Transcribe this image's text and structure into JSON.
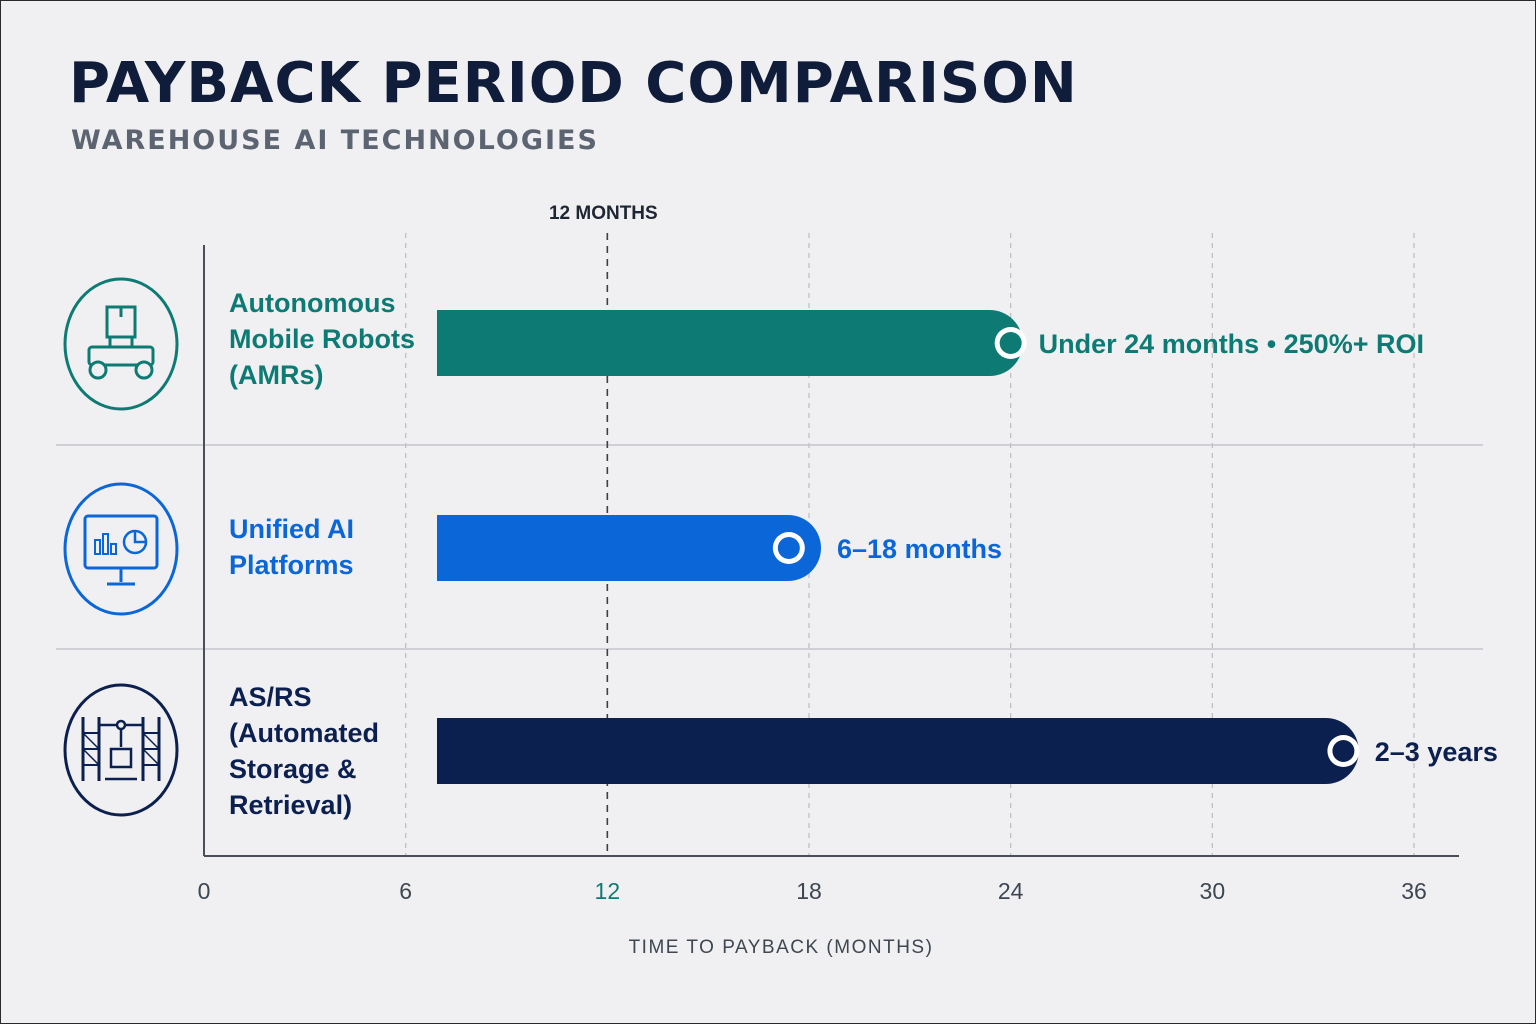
{
  "title": "PAYBACK PERIOD COMPARISON",
  "subtitle": "WAREHOUSE AI TECHNOLOGIES",
  "colors": {
    "background": "#f0f0f2",
    "title": "#0f1d3a",
    "subtitle": "#5b6470",
    "axis": "#4a4f57",
    "grid": "#b9bcc2"
  },
  "chart_data": {
    "type": "bar",
    "orientation": "horizontal",
    "title": "PAYBACK PERIOD COMPARISON",
    "subtitle": "WAREHOUSE AI TECHNOLOGIES",
    "xlabel": "TIME TO PAYBACK (MONTHS)",
    "ylabel": "",
    "xlim": [
      0,
      36
    ],
    "xticks": [
      "0",
      "6",
      "12",
      "18",
      "24",
      "30",
      "36"
    ],
    "grid": "vertical dashed",
    "reference_line": {
      "value": 12,
      "label": "12 MONTHS"
    },
    "categories": [
      "Autonomous Mobile Robots (AMRs)",
      "Unified AI Platforms",
      "AS/RS (Automated Storage & Retrieval)"
    ],
    "series": [
      {
        "bars": [
          {
            "category": "Autonomous Mobile Robots (AMRs)",
            "start": 5,
            "end": 24,
            "marker": 24,
            "label": "Under 24 months • 250%+ ROI",
            "color": "#0d7b73"
          },
          {
            "category": "Unified AI Platforms",
            "start": 5,
            "end": 18,
            "marker": 17.4,
            "label": "6–18 months",
            "color": "#0b66d8"
          },
          {
            "category": "AS/RS (Automated Storage & Retrieval)",
            "start": 5,
            "end": 34,
            "marker": 33.9,
            "label": "2–3 years",
            "color": "#0c2050"
          }
        ]
      }
    ]
  },
  "rows": [
    {
      "label_lines": [
        "Autonomous",
        "Mobile Robots",
        "(AMRs)",
        ""
      ],
      "icon": "robot-icon",
      "color": "#0d7b73"
    },
    {
      "label_lines": [
        "Unified AI",
        "Platforms",
        "",
        ""
      ],
      "icon": "dashboard-monitor-icon",
      "color": "#0b66d8"
    },
    {
      "label_lines": [
        "AS/RS",
        "(Automated",
        "Storage &",
        "Retrieval)"
      ],
      "icon": "storage-rack-icon",
      "color": "#0c2050"
    }
  ]
}
